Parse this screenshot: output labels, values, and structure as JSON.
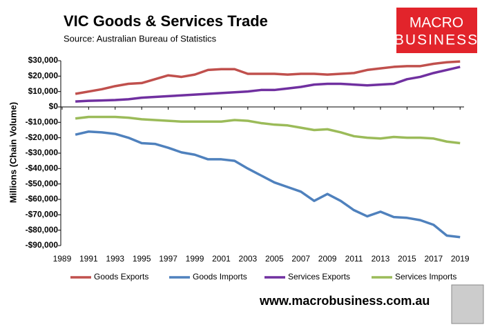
{
  "chart_data": {
    "type": "line",
    "title": "VIC Goods & Services Trade",
    "subtitle": "Source:  Australian Bureau of Statistics",
    "y_label": "Millions (Chain Volume)",
    "logo": [
      "MACRO",
      "BUSINESS"
    ],
    "website": "www.macrobusiness.com.au",
    "x": [
      1990,
      1991,
      1992,
      1993,
      1994,
      1995,
      1996,
      1997,
      1998,
      1999,
      2000,
      2001,
      2002,
      2003,
      2004,
      2005,
      2006,
      2007,
      2008,
      2009,
      2010,
      2011,
      2012,
      2013,
      2014,
      2015,
      2016,
      2017,
      2018,
      2019
    ],
    "xlim": [
      1988.9,
      2019.3
    ],
    "xticks": [
      1989,
      1991,
      1993,
      1995,
      1997,
      1999,
      2001,
      2003,
      2005,
      2007,
      2009,
      2011,
      2013,
      2015,
      2017,
      2019
    ],
    "ylim": [
      -90000,
      30000
    ],
    "yticks": [
      {
        "value": 30000,
        "label": "$30,000"
      },
      {
        "value": 20000,
        "label": "$20,000"
      },
      {
        "value": 10000,
        "label": "$10,000"
      },
      {
        "value": 0,
        "label": "$0"
      },
      {
        "value": -10000,
        "label": "-$10,000"
      },
      {
        "value": -20000,
        "label": "-$20,000"
      },
      {
        "value": -30000,
        "label": "-$30,000"
      },
      {
        "value": -40000,
        "label": "-$40,000"
      },
      {
        "value": -50000,
        "label": "-$50,000"
      },
      {
        "value": -60000,
        "label": "-$60,000"
      },
      {
        "value": -70000,
        "label": "-$70,000"
      },
      {
        "value": -80000,
        "label": "-$80,000"
      },
      {
        "value": -90000,
        "label": "-$90,000"
      }
    ],
    "legend": "bottom",
    "series": [
      {
        "name": "Goods Exports",
        "color": "#c0504d",
        "values": [
          8500,
          10000,
          11500,
          13500,
          15000,
          15500,
          18000,
          20500,
          19500,
          21000,
          24000,
          24500,
          24500,
          21500,
          21500,
          21500,
          21000,
          21500,
          21500,
          21000,
          21500,
          22000,
          24000,
          25000,
          26000,
          26500,
          26500,
          28000,
          29000,
          29500
        ]
      },
      {
        "name": "Goods Imports",
        "color": "#4f81bd",
        "values": [
          -18000,
          -16000,
          -16500,
          -17500,
          -20000,
          -23500,
          -24000,
          -26500,
          -29500,
          -31000,
          -34000,
          -34000,
          -35000,
          -40000,
          -44500,
          -49000,
          -52000,
          -55000,
          -61000,
          -56500,
          -61000,
          -67000,
          -71000,
          -68000,
          -71500,
          -72000,
          -73500,
          -76500,
          -83500,
          -84500
        ]
      },
      {
        "name": "Services Exports",
        "color": "#7030a0",
        "values": [
          3500,
          4000,
          4200,
          4500,
          5000,
          6000,
          6500,
          7000,
          7500,
          8000,
          8500,
          9000,
          9500,
          10000,
          11000,
          11000,
          12000,
          13000,
          14500,
          15000,
          15000,
          14500,
          14000,
          14500,
          15000,
          18000,
          19500,
          22000,
          24000,
          26000
        ]
      },
      {
        "name": "Services Imports",
        "color": "#9bbb59",
        "values": [
          -7500,
          -6500,
          -6500,
          -6500,
          -7000,
          -8000,
          -8500,
          -9000,
          -9500,
          -9500,
          -9500,
          -9500,
          -8500,
          -9000,
          -10500,
          -11500,
          -12000,
          -13500,
          -15000,
          -14500,
          -16500,
          -19000,
          -20000,
          -20500,
          -19500,
          -20000,
          -20000,
          -20500,
          -22500,
          -23500
        ]
      }
    ]
  }
}
